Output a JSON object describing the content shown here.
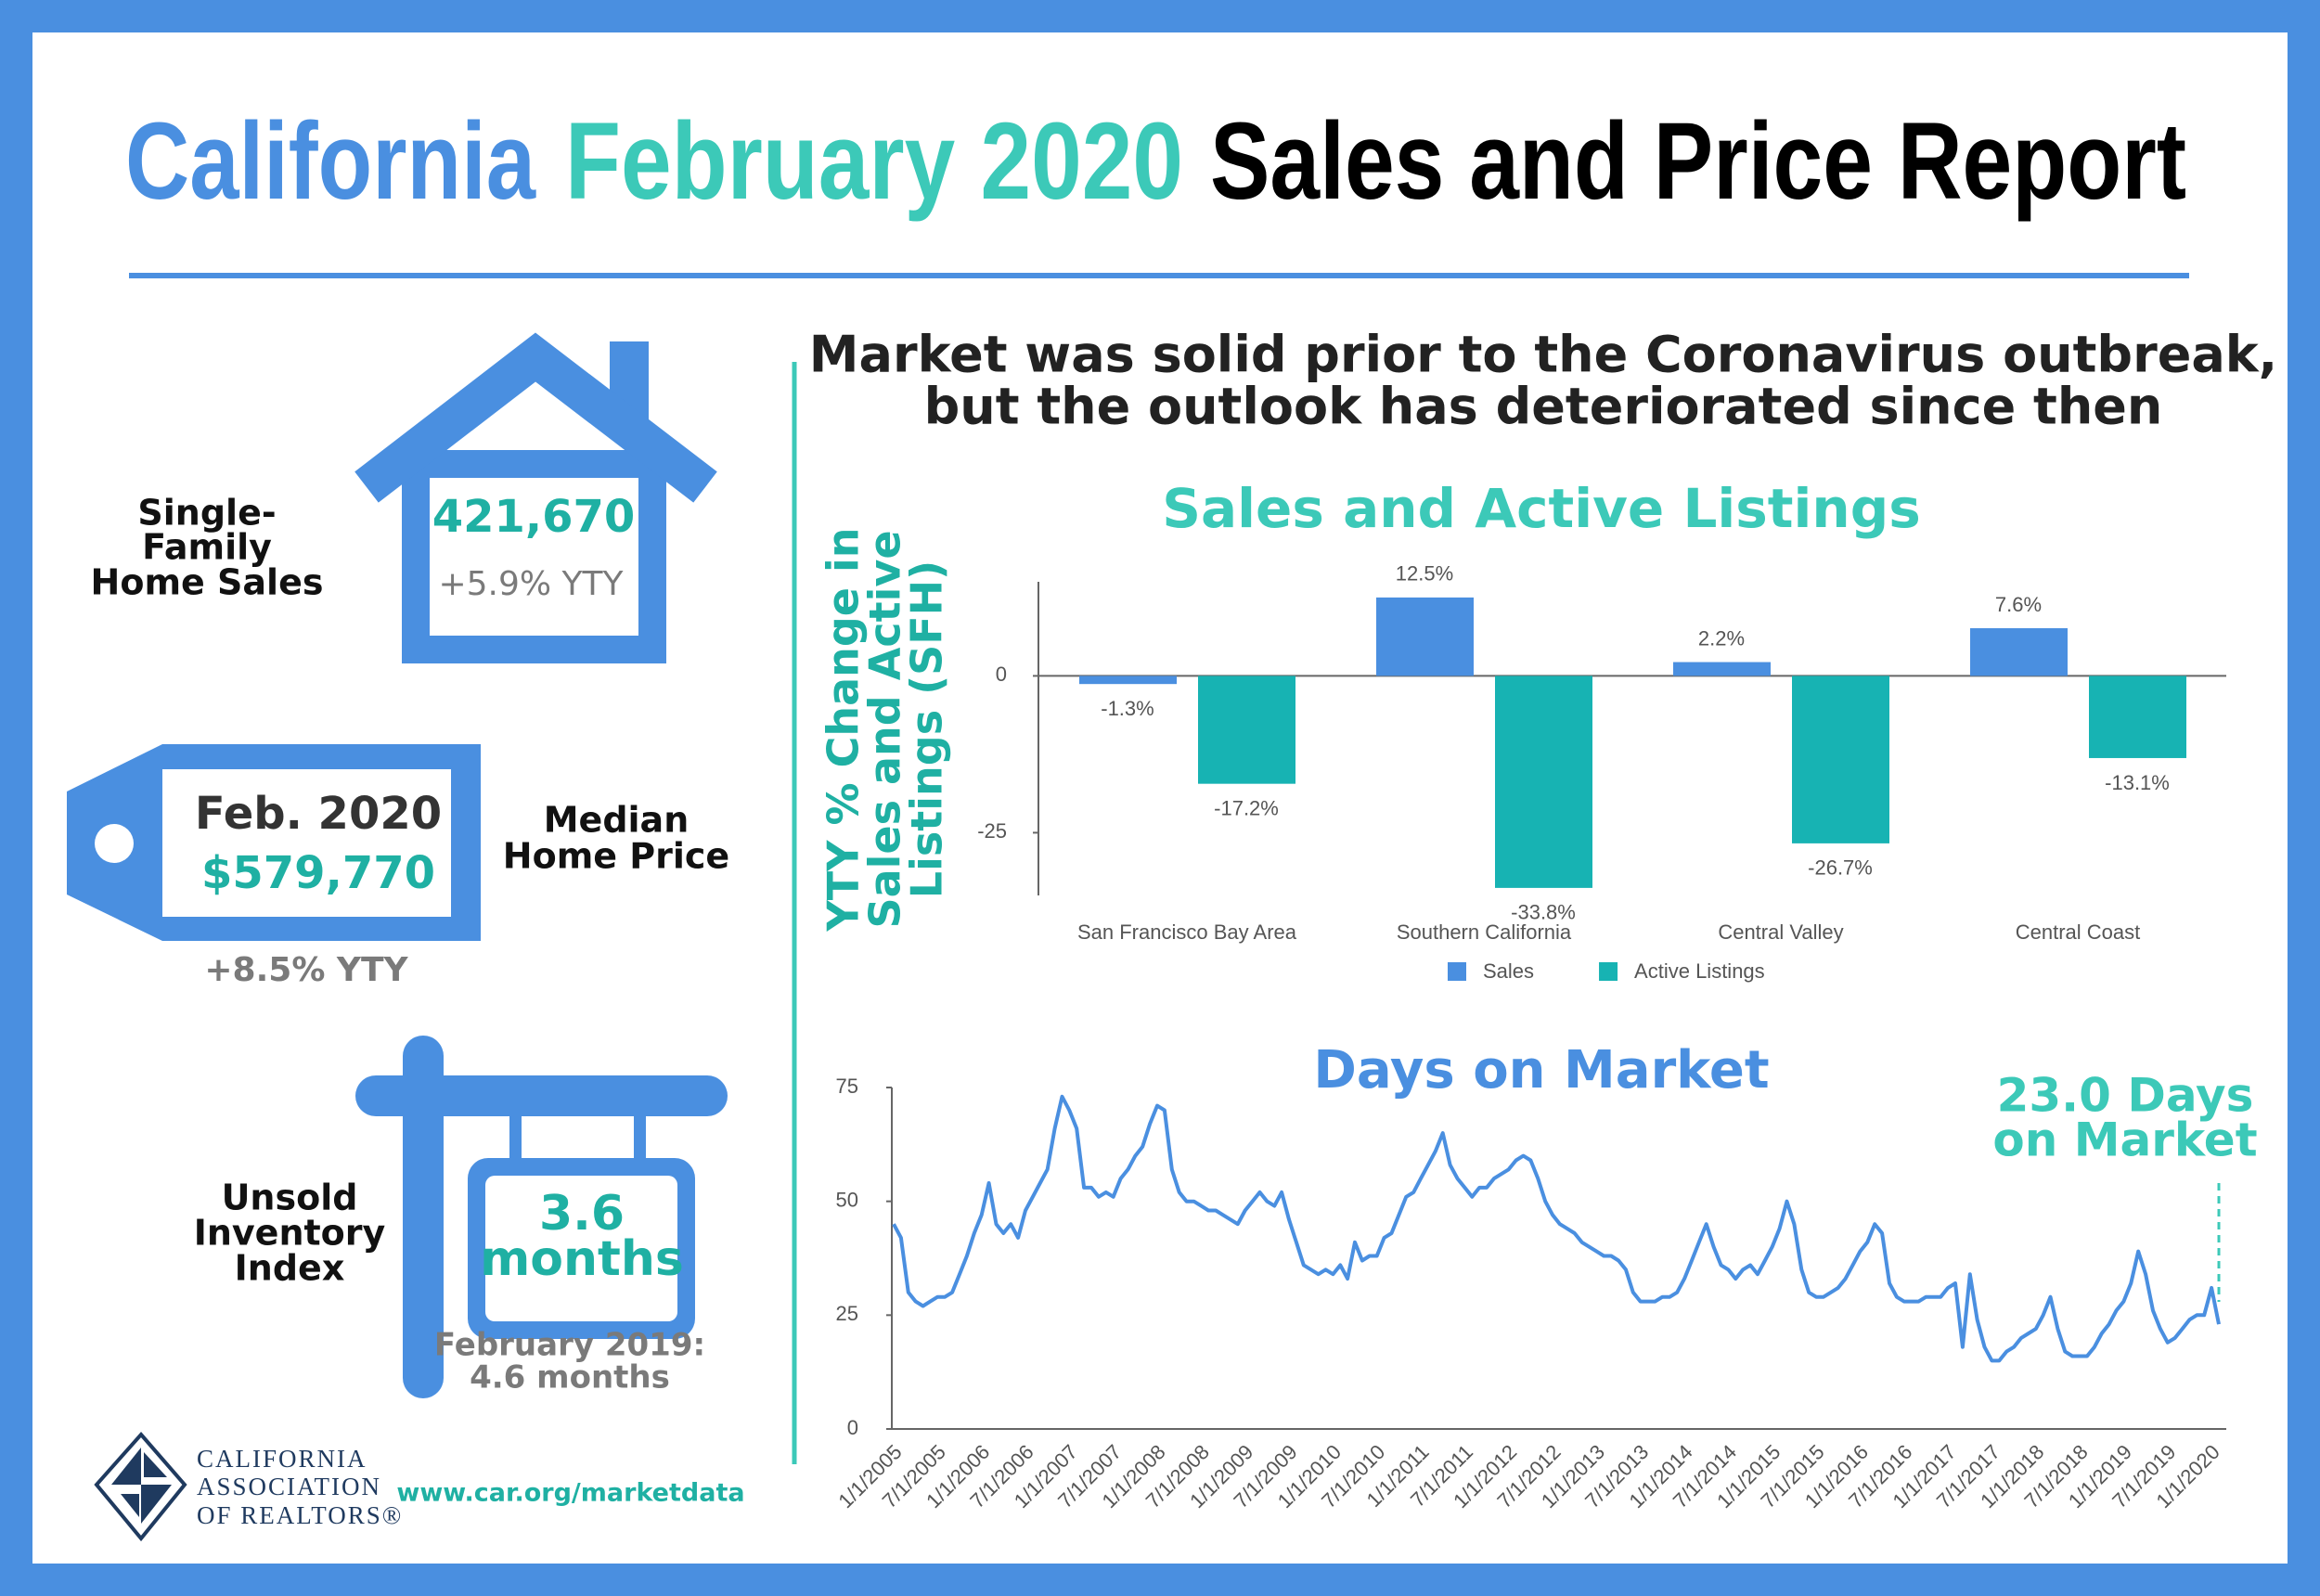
{
  "header": {
    "title_parts": [
      "California",
      "February 2020",
      "Sales and Price Report"
    ]
  },
  "headline": [
    "Market was solid prior to the Coronavirus outbreak,",
    "but the outlook has deteriorated since then"
  ],
  "sales_panel": {
    "label": [
      "Single-",
      "Family",
      "Home Sales"
    ],
    "value": "421,670",
    "change": "+5.9% YTY"
  },
  "price_panel": {
    "period": "Feb. 2020",
    "value": "$579,770",
    "change": "+8.5% YTY",
    "label": [
      "Median",
      "Home Price"
    ]
  },
  "inventory_panel": {
    "label": [
      "Unsold",
      "Inventory",
      "Index"
    ],
    "value": [
      "3.6",
      "months"
    ],
    "comparison": [
      "February 2019:",
      "4.6 months"
    ]
  },
  "footer": {
    "logo_lines": [
      "CALIFORNIA",
      "ASSOCIATION",
      "OF REALTORS®"
    ],
    "url": "www.car.org/marketdata"
  },
  "chart_data": [
    {
      "type": "bar",
      "title": "Sales and Active Listings",
      "ylabel": [
        "YTY % Change in",
        "Sales and Active",
        "Listings (SFH)"
      ],
      "categories": [
        "San Francisco Bay Area",
        "Southern California",
        "Central Valley",
        "Central Coast"
      ],
      "series": [
        {
          "name": "Sales",
          "color": "#4a8fe0",
          "values": [
            -1.3,
            12.5,
            2.2,
            7.6
          ],
          "value_labels": [
            "-1.3%",
            "12.5%",
            "2.2%",
            "7.6%"
          ]
        },
        {
          "name": "Active Listings",
          "color": "#17b3b3",
          "values": [
            -17.2,
            -33.8,
            -26.7,
            -13.1
          ],
          "value_labels": [
            "-17.2%",
            "-33.8%",
            "-26.7%",
            "-13.1%"
          ]
        }
      ],
      "ylim": [
        -35,
        15
      ],
      "yticks": [
        -25,
        0
      ],
      "legend": "bottom"
    },
    {
      "type": "line",
      "title": "Days on Market",
      "annotation": [
        "23.0 Days",
        "on Market"
      ],
      "color": "#4a8fe0",
      "categories": [
        "1/1/2005",
        null,
        null,
        null,
        null,
        null,
        "7/1/2005",
        null,
        null,
        null,
        null,
        null,
        "1/1/2006",
        null,
        null,
        null,
        null,
        null,
        "7/1/2006",
        null,
        null,
        null,
        null,
        null,
        "1/1/2007",
        null,
        null,
        null,
        null,
        null,
        "7/1/2007",
        null,
        null,
        null,
        null,
        null,
        "1/1/2008",
        null,
        null,
        null,
        null,
        null,
        "7/1/2008",
        null,
        null,
        null,
        null,
        null,
        "1/1/2009",
        null,
        null,
        null,
        null,
        null,
        "7/1/2009",
        null,
        null,
        null,
        null,
        null,
        "1/1/2010",
        null,
        null,
        null,
        null,
        null,
        "7/1/2010",
        null,
        null,
        null,
        null,
        null,
        "1/1/2011",
        null,
        null,
        null,
        null,
        null,
        "7/1/2011",
        null,
        null,
        null,
        null,
        null,
        "1/1/2012",
        null,
        null,
        null,
        null,
        null,
        "7/1/2012",
        null,
        null,
        null,
        null,
        null,
        "1/1/2013",
        null,
        null,
        null,
        null,
        null,
        "7/1/2013",
        null,
        null,
        null,
        null,
        null,
        "1/1/2014",
        null,
        null,
        null,
        null,
        null,
        "7/1/2014",
        null,
        null,
        null,
        null,
        null,
        "1/1/2015",
        null,
        null,
        null,
        null,
        null,
        "7/1/2015",
        null,
        null,
        null,
        null,
        null,
        "1/1/2016",
        null,
        null,
        null,
        null,
        null,
        "7/1/2016",
        null,
        null,
        null,
        null,
        null,
        "1/1/2017",
        null,
        null,
        null,
        null,
        null,
        "7/1/2017",
        null,
        null,
        null,
        null,
        null,
        "1/1/2018",
        null,
        null,
        null,
        null,
        null,
        "7/1/2018",
        null,
        null,
        null,
        null,
        null,
        "1/1/2019",
        null,
        null,
        null,
        null,
        null,
        "7/1/2019",
        null,
        null,
        null,
        null,
        null,
        "1/1/2020",
        null
      ],
      "values": [
        45,
        42,
        30,
        28,
        27,
        28,
        29,
        29,
        30,
        34,
        38,
        43,
        47,
        54,
        45,
        43,
        45,
        42,
        48,
        51,
        54,
        57,
        66,
        73,
        70,
        66,
        53,
        53,
        51,
        52,
        51,
        55,
        57,
        60,
        62,
        67,
        71,
        70,
        57,
        52,
        50,
        50,
        49,
        48,
        48,
        47,
        46,
        45,
        48,
        50,
        52,
        50,
        49,
        52,
        46,
        41,
        36,
        35,
        34,
        35,
        34,
        36,
        33,
        41,
        37,
        38,
        38,
        42,
        43,
        47,
        51,
        52,
        55,
        58,
        61,
        65,
        58,
        55,
        53,
        51,
        53,
        53,
        55,
        56,
        57,
        59,
        60,
        59,
        55,
        50,
        47,
        45,
        44,
        43,
        41,
        40,
        39,
        38,
        38,
        37,
        35,
        30,
        28,
        28,
        28,
        29,
        29,
        30,
        33,
        37,
        41,
        45,
        40,
        36,
        35,
        33,
        35,
        36,
        34,
        37,
        40,
        44,
        50,
        45,
        35,
        30,
        29,
        29,
        30,
        31,
        33,
        36,
        39,
        41,
        45,
        43,
        32,
        29,
        28,
        28,
        28,
        29,
        29,
        29,
        31,
        32,
        18,
        34,
        24,
        18,
        15,
        15,
        17,
        18,
        20,
        21,
        22,
        25,
        29,
        22,
        17,
        16,
        16,
        16,
        18,
        21,
        23,
        26,
        28,
        32,
        39,
        34,
        26,
        22,
        19,
        20,
        22,
        24,
        25,
        25,
        31,
        23
      ],
      "ylim": [
        0,
        75
      ],
      "yticks": [
        0,
        25,
        50,
        75
      ]
    }
  ]
}
